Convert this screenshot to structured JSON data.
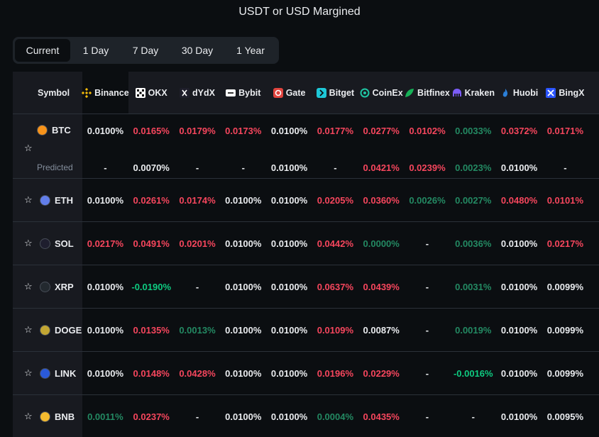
{
  "title": "USDT or USD Margined",
  "tabs": [
    "Current",
    "1 Day",
    "7 Day",
    "30 Day",
    "1 Year"
  ],
  "columns": {
    "symbol": "Symbol",
    "exchanges": [
      "Binance",
      "OKX",
      "dYdX",
      "Bybit",
      "Gate",
      "Bitget",
      "CoinEx",
      "Bitfinex",
      "Kraken",
      "Huobi",
      "BingX"
    ]
  },
  "predicted_label": "Predicted",
  "rows": [
    {
      "symbol": "BTC",
      "coin_color": "#f7931a",
      "values": [
        "0.0100%",
        "0.0165%",
        "0.0179%",
        "0.0173%",
        "0.0100%",
        "0.0177%",
        "0.0277%",
        "0.0102%",
        "0.0033%",
        "0.0372%",
        "0.0171%"
      ],
      "predicted": [
        "-",
        "0.0070%",
        "-",
        "-",
        "0.0100%",
        "-",
        "0.0421%",
        "0.0239%",
        "0.0023%",
        "0.0100%",
        "-"
      ]
    },
    {
      "symbol": "ETH",
      "coin_color": "#627eea",
      "values": [
        "0.0100%",
        "0.0261%",
        "0.0174%",
        "0.0100%",
        "0.0100%",
        "0.0205%",
        "0.0360%",
        "0.0026%",
        "0.0027%",
        "0.0480%",
        "0.0101%"
      ]
    },
    {
      "symbol": "SOL",
      "coin_color": "#1e1e2e",
      "values": [
        "0.0217%",
        "0.0491%",
        "0.0201%",
        "0.0100%",
        "0.0100%",
        "0.0442%",
        "0.0000%",
        "-",
        "0.0036%",
        "0.0100%",
        "0.0217%"
      ]
    },
    {
      "symbol": "XRP",
      "coin_color": "#23292f",
      "values": [
        "0.0100%",
        "-0.0190%",
        "-",
        "0.0100%",
        "0.0100%",
        "0.0637%",
        "0.0439%",
        "-",
        "0.0031%",
        "0.0100%",
        "0.0099%"
      ]
    },
    {
      "symbol": "DOGE",
      "coin_color": "#c2a633",
      "values": [
        "0.0100%",
        "0.0135%",
        "0.0013%",
        "0.0100%",
        "0.0100%",
        "0.0109%",
        "0.0087%",
        "-",
        "0.0019%",
        "0.0100%",
        "0.0099%"
      ]
    },
    {
      "symbol": "LINK",
      "coin_color": "#2a5ada",
      "values": [
        "0.0100%",
        "0.0148%",
        "0.0428%",
        "0.0100%",
        "0.0100%",
        "0.0196%",
        "0.0229%",
        "-",
        "-0.0016%",
        "0.0100%",
        "0.0099%"
      ]
    },
    {
      "symbol": "BNB",
      "coin_color": "#f3ba2f",
      "values": [
        "0.0011%",
        "0.0237%",
        "-",
        "0.0100%",
        "0.0100%",
        "0.0004%",
        "0.0435%",
        "-",
        "-",
        "0.0100%",
        "0.0095%"
      ]
    }
  ],
  "colors": {
    "positive_high": "#f6465d",
    "neutral": "#eaecef",
    "low": "#0ecb81"
  }
}
